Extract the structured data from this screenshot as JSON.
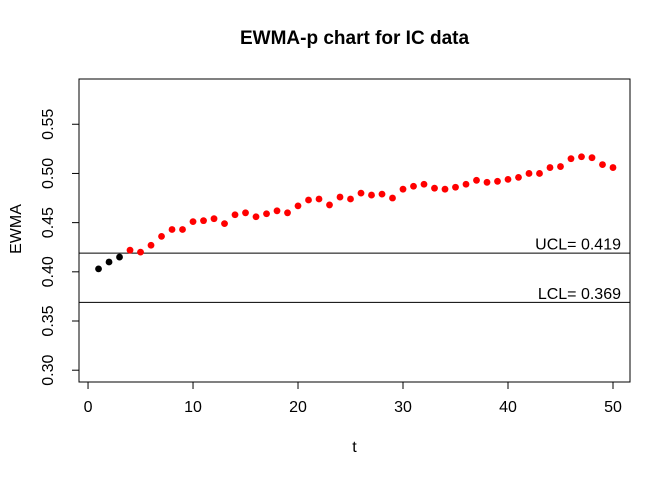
{
  "chart_data": {
    "type": "scatter",
    "title": "EWMA-p chart for IC data",
    "xlabel": "t",
    "ylabel": "EWMA",
    "x": [
      1,
      2,
      3,
      4,
      5,
      6,
      7,
      8,
      9,
      10,
      11,
      12,
      13,
      14,
      15,
      16,
      17,
      18,
      19,
      20,
      21,
      22,
      23,
      24,
      25,
      26,
      27,
      28,
      29,
      30,
      31,
      32,
      33,
      34,
      35,
      36,
      37,
      38,
      39,
      40,
      41,
      42,
      43,
      44,
      45,
      46,
      47,
      48,
      49,
      50
    ],
    "series": [
      {
        "name": "EWMA",
        "values": [
          0.403,
          0.41,
          0.415,
          0.422,
          0.42,
          0.427,
          0.436,
          0.443,
          0.443,
          0.451,
          0.452,
          0.454,
          0.449,
          0.458,
          0.46,
          0.456,
          0.459,
          0.462,
          0.46,
          0.467,
          0.473,
          0.474,
          0.468,
          0.476,
          0.474,
          0.48,
          0.478,
          0.479,
          0.475,
          0.484,
          0.487,
          0.489,
          0.485,
          0.484,
          0.486,
          0.489,
          0.493,
          0.491,
          0.492,
          0.494,
          0.496,
          0.5,
          0.5,
          0.506,
          0.507,
          0.515,
          0.517,
          0.516,
          0.509,
          0.506
        ]
      }
    ],
    "initial_black_points": 3,
    "control_limits": {
      "ucl_value": 0.419,
      "ucl_label": "UCL= 0.419",
      "lcl_value": 0.369,
      "lcl_label": "LCL= 0.369"
    },
    "x_ticks": [
      "0",
      "10",
      "20",
      "30",
      "40",
      "50"
    ],
    "y_ticks": [
      "0.30",
      "0.35",
      "0.40",
      "0.45",
      "0.50",
      "0.55"
    ],
    "xlim": [
      -0.86,
      51.62
    ],
    "ylim": [
      0.288,
      0.596
    ],
    "grid": false,
    "legend": null,
    "colors": {
      "initial_points": "#000000",
      "monitoring_points": "#ff0000",
      "lines": "#000000",
      "background": "#ffffff"
    }
  }
}
